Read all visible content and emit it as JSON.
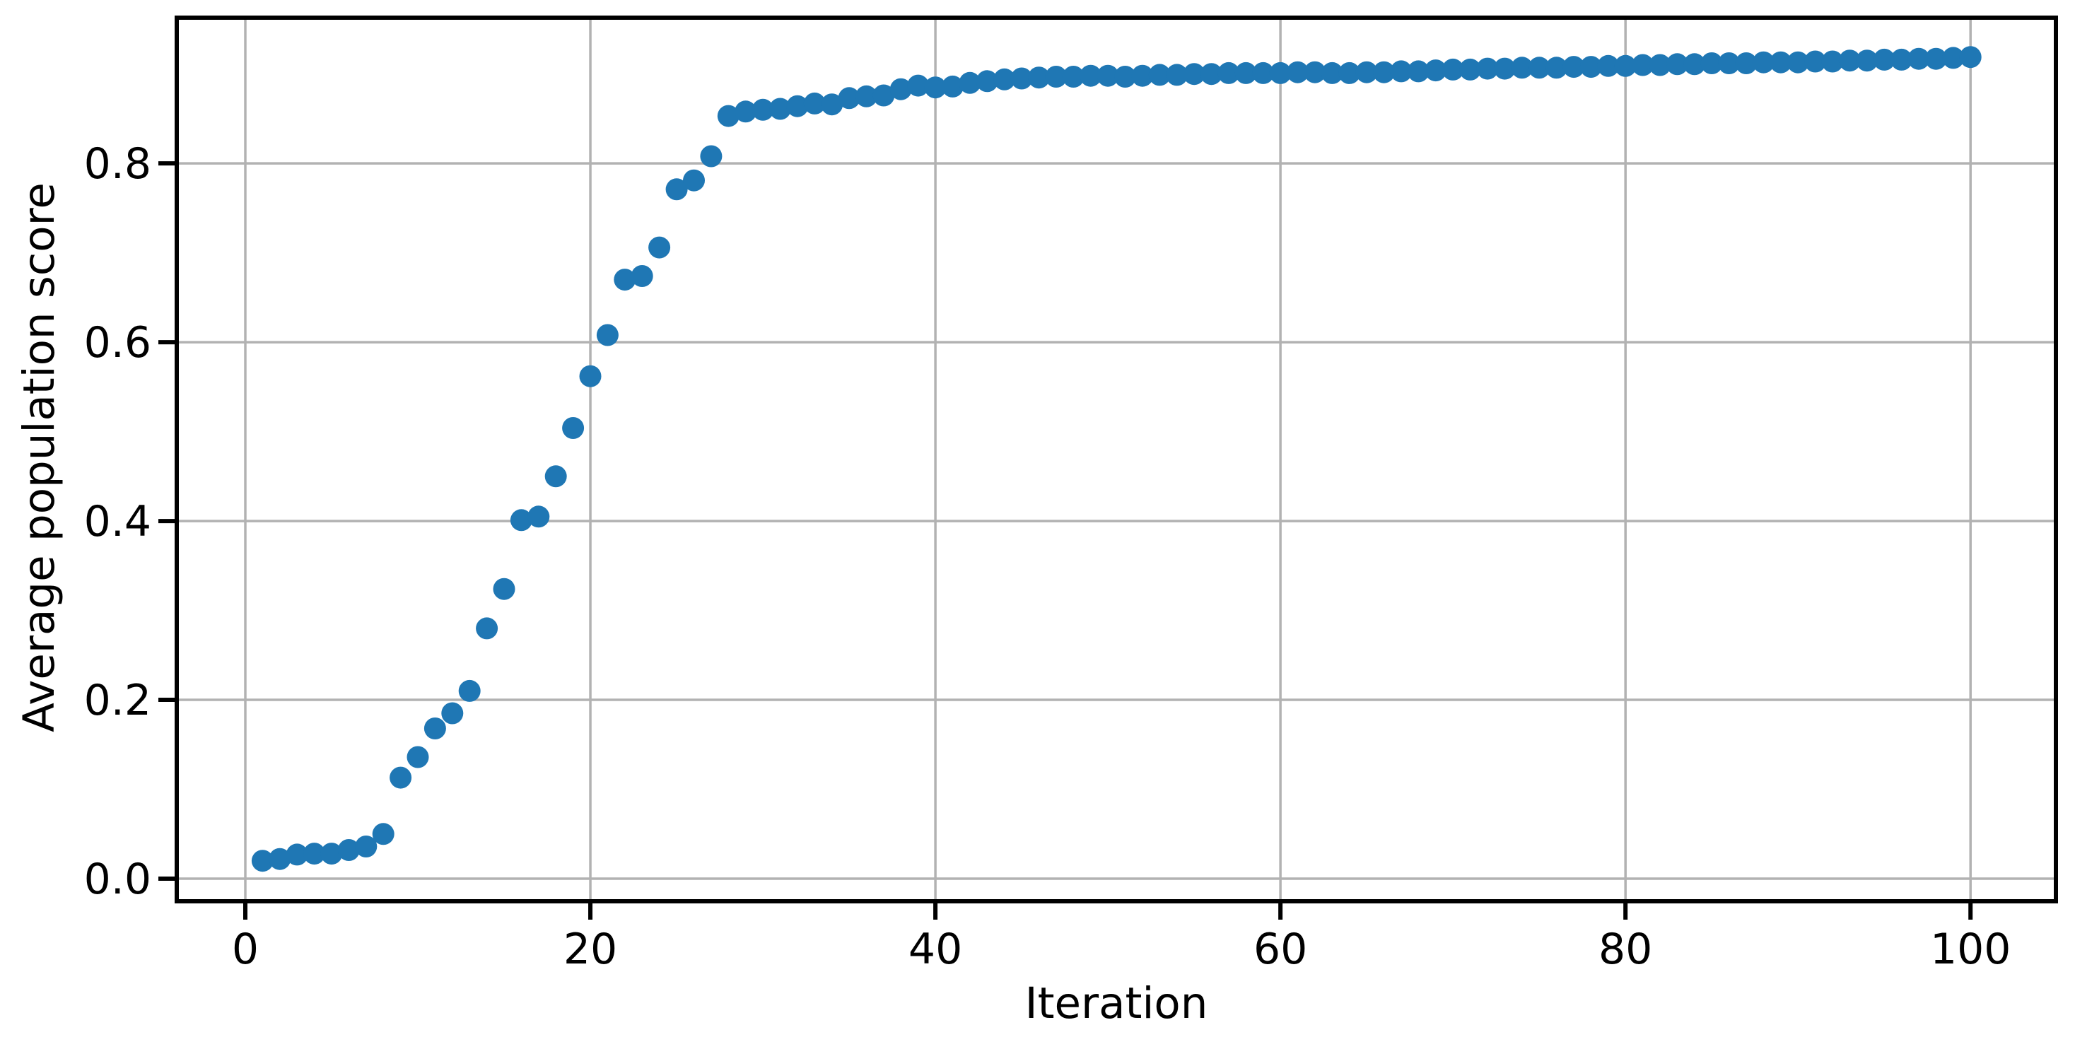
{
  "chart_data": {
    "type": "scatter",
    "title": "",
    "xlabel": "Iteration",
    "ylabel": "Average population score",
    "x": [
      1,
      2,
      3,
      4,
      5,
      6,
      7,
      8,
      9,
      10,
      11,
      12,
      13,
      14,
      15,
      16,
      17,
      18,
      19,
      20,
      21,
      22,
      23,
      24,
      25,
      26,
      27,
      28,
      29,
      30,
      31,
      32,
      33,
      34,
      35,
      36,
      37,
      38,
      39,
      40,
      41,
      42,
      43,
      44,
      45,
      46,
      47,
      48,
      49,
      50,
      51,
      52,
      53,
      54,
      55,
      56,
      57,
      58,
      59,
      60,
      61,
      62,
      63,
      64,
      65,
      66,
      67,
      68,
      69,
      70,
      71,
      72,
      73,
      74,
      75,
      76,
      77,
      78,
      79,
      80,
      81,
      82,
      83,
      84,
      85,
      86,
      87,
      88,
      89,
      90,
      91,
      92,
      93,
      94,
      95,
      96,
      97,
      98,
      99,
      100
    ],
    "y": [
      0.02,
      0.022,
      0.027,
      0.028,
      0.028,
      0.032,
      0.036,
      0.05,
      0.113,
      0.136,
      0.168,
      0.185,
      0.21,
      0.28,
      0.324,
      0.401,
      0.405,
      0.45,
      0.504,
      0.562,
      0.608,
      0.67,
      0.674,
      0.706,
      0.771,
      0.781,
      0.808,
      0.853,
      0.858,
      0.86,
      0.861,
      0.864,
      0.867,
      0.866,
      0.873,
      0.875,
      0.876,
      0.883,
      0.887,
      0.885,
      0.886,
      0.89,
      0.892,
      0.894,
      0.895,
      0.896,
      0.897,
      0.897,
      0.898,
      0.898,
      0.897,
      0.898,
      0.899,
      0.899,
      0.9,
      0.9,
      0.901,
      0.901,
      0.901,
      0.901,
      0.902,
      0.902,
      0.901,
      0.901,
      0.902,
      0.902,
      0.903,
      0.903,
      0.904,
      0.905,
      0.905,
      0.906,
      0.906,
      0.907,
      0.907,
      0.907,
      0.908,
      0.908,
      0.909,
      0.909,
      0.91,
      0.91,
      0.911,
      0.911,
      0.912,
      0.912,
      0.912,
      0.913,
      0.913,
      0.913,
      0.914,
      0.914,
      0.915,
      0.915,
      0.916,
      0.916,
      0.917,
      0.917,
      0.918,
      0.919
    ],
    "xlim": [
      -3.975,
      104.95
    ],
    "ylim": [
      -0.0253,
      0.963
    ],
    "xticks": [
      0,
      20,
      40,
      60,
      80,
      100
    ],
    "xtick_labels": [
      "0",
      "20",
      "40",
      "60",
      "80",
      "100"
    ],
    "yticks": [
      0.0,
      0.2,
      0.4,
      0.6,
      0.8
    ],
    "ytick_labels": [
      "0.0",
      "0.2",
      "0.4",
      "0.6",
      "0.8"
    ],
    "grid": true,
    "legend": "none",
    "marker_color": "#1f77b4",
    "grid_color": "#b2b2b2",
    "axis_color": "#000000",
    "background": "#ffffff"
  }
}
